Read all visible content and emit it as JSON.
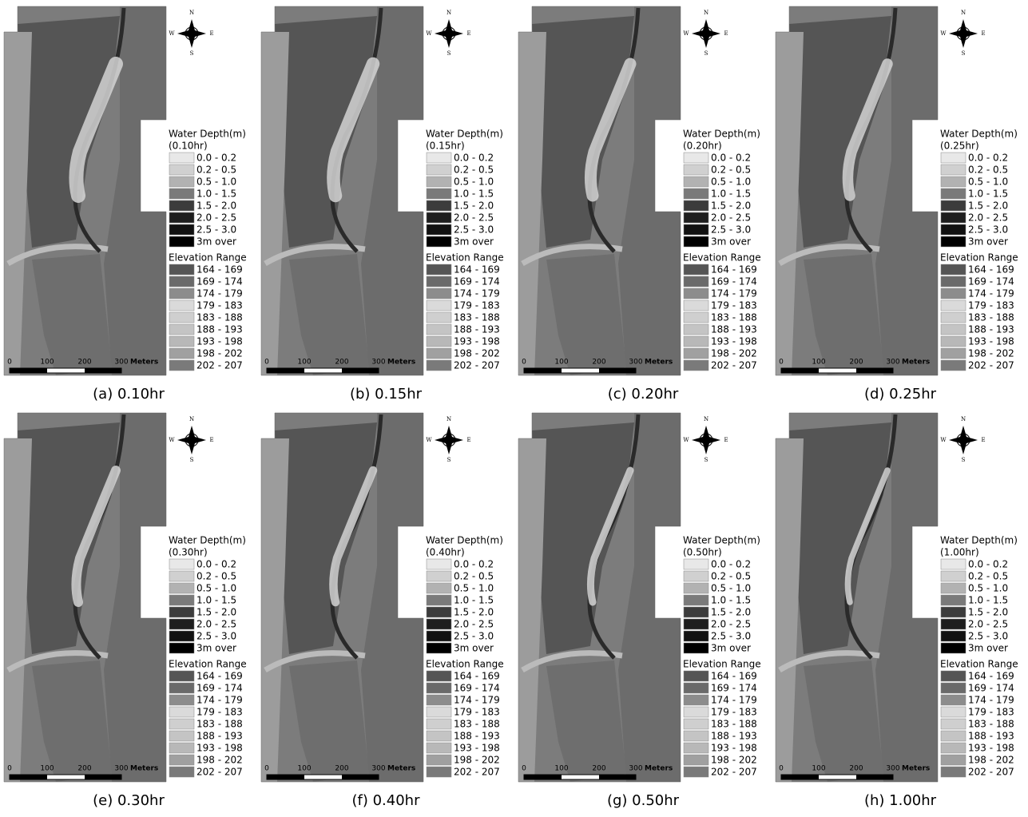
{
  "panels": [
    {
      "caption": "(a) 0.10hr",
      "legend_time": "(0.10hr)"
    },
    {
      "caption": "(b) 0.15hr",
      "legend_time": "(0.15hr)"
    },
    {
      "caption": "(c) 0.20hr",
      "legend_time": "(0.20hr)"
    },
    {
      "caption": "(d) 0.25hr",
      "legend_time": "(0.25hr)"
    },
    {
      "caption": "(e) 0.30hr",
      "legend_time": "(0.30hr)"
    },
    {
      "caption": "(f) 0.40hr",
      "legend_time": "(0.40hr)"
    },
    {
      "caption": "(g) 0.50hr",
      "legend_time": "(0.50hr)"
    },
    {
      "caption": "(h) 1.00hr",
      "legend_time": "(1.00hr)"
    }
  ],
  "legend": {
    "water_title": "Water Depth(m)",
    "water_classes": [
      {
        "label": "0.0 - 0.2",
        "color": "#e8e8e8"
      },
      {
        "label": "0.2 - 0.5",
        "color": "#d0d0d0"
      },
      {
        "label": "0.5 - 1.0",
        "color": "#b2b2b2"
      },
      {
        "label": "1.0 - 1.5",
        "color": "#7a7a7a"
      },
      {
        "label": "1.5 - 2.0",
        "color": "#3c3c3c"
      },
      {
        "label": "2.0 - 2.5",
        "color": "#1e1e1e"
      },
      {
        "label": "2.5 - 3.0",
        "color": "#111111"
      },
      {
        "label": "3m over",
        "color": "#000000"
      }
    ],
    "elevation_title": "Elevation Range",
    "elevation_classes": [
      {
        "label": "164 - 169",
        "color": "#555555"
      },
      {
        "label": "169 - 174",
        "color": "#6a6a6a"
      },
      {
        "label": "174 - 179",
        "color": "#8c8c8c"
      },
      {
        "label": "179 - 183",
        "color": "#dadada"
      },
      {
        "label": "183 - 188",
        "color": "#cfcfcf"
      },
      {
        "label": "188 - 193",
        "color": "#c4c4c4"
      },
      {
        "label": "193 - 198",
        "color": "#b8b8b8"
      },
      {
        "label": "198 - 202",
        "color": "#a0a0a0"
      },
      {
        "label": "202 - 207",
        "color": "#7a7a7a"
      }
    ]
  },
  "scale_bar": {
    "labels": [
      "0",
      "100",
      "200",
      "300"
    ],
    "unit": "Meters"
  },
  "compass": {
    "n": "N",
    "s": "S",
    "w": "W",
    "e": "E"
  }
}
